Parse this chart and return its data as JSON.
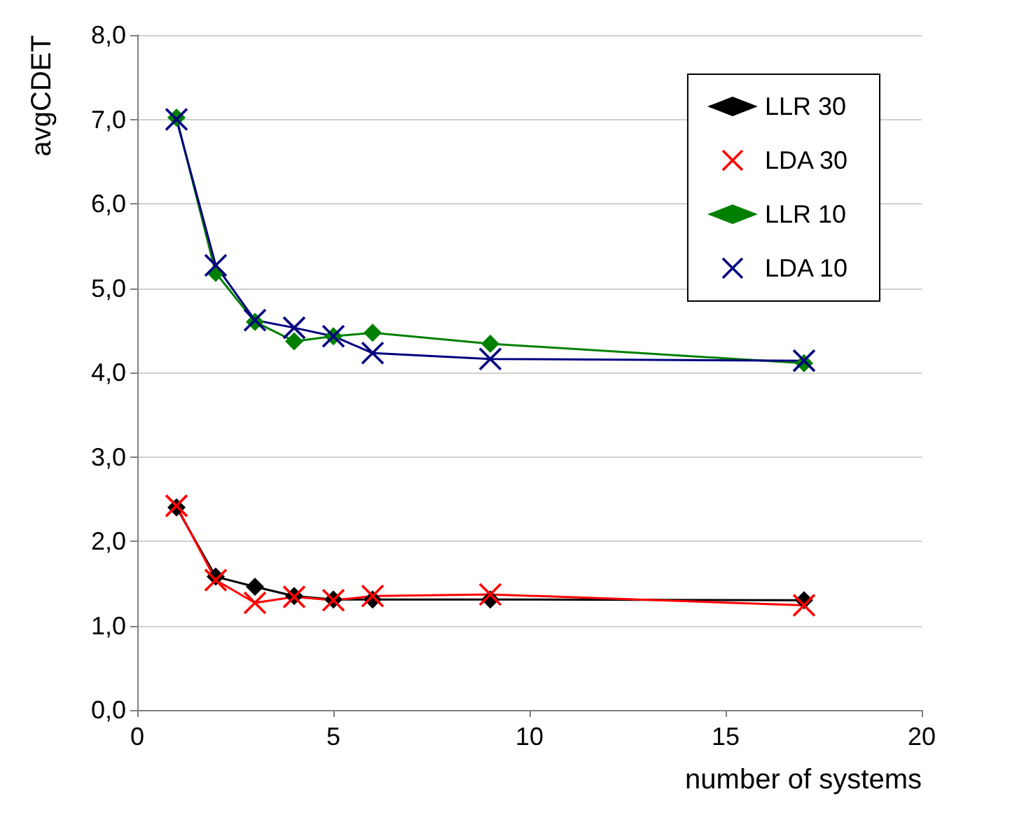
{
  "chart_data": {
    "type": "line",
    "xlabel": "number of systems",
    "ylabel": "avgCDET",
    "x": [
      1,
      2,
      3,
      4,
      5,
      6,
      9,
      17
    ],
    "series": [
      {
        "name": "LLR 30",
        "color": "#000000",
        "marker": "diamond",
        "values": [
          2.4,
          1.58,
          1.46,
          1.35,
          1.31,
          1.31,
          1.31,
          1.3
        ]
      },
      {
        "name": "LDA 30",
        "color": "#ff0000",
        "marker": "cross",
        "values": [
          2.42,
          1.54,
          1.27,
          1.34,
          1.3,
          1.35,
          1.37,
          1.24
        ]
      },
      {
        "name": "LLR 10",
        "color": "#008000",
        "marker": "diamond",
        "values": [
          7.02,
          5.18,
          4.6,
          4.37,
          4.43,
          4.47,
          4.34,
          4.11
        ]
      },
      {
        "name": "LDA 10",
        "color": "#000080",
        "marker": "cross",
        "values": [
          7.0,
          5.27,
          4.62,
          4.53,
          4.43,
          4.23,
          4.16,
          4.14
        ]
      }
    ],
    "xlim": [
      0,
      20
    ],
    "xticks": [
      0,
      5,
      10,
      15,
      20
    ],
    "ylim": [
      0,
      8
    ],
    "yticks": [
      {
        "value": 0,
        "label": "0,0"
      },
      {
        "value": 1,
        "label": "1,0"
      },
      {
        "value": 2,
        "label": "2,0"
      },
      {
        "value": 3,
        "label": "3,0"
      },
      {
        "value": 4,
        "label": "4,0"
      },
      {
        "value": 5,
        "label": "5,0"
      },
      {
        "value": 6,
        "label": "6,0"
      },
      {
        "value": 7,
        "label": "7,0"
      },
      {
        "value": 8,
        "label": "8,0"
      }
    ],
    "grid": "y",
    "legend": "top right",
    "line_style": "solid"
  }
}
